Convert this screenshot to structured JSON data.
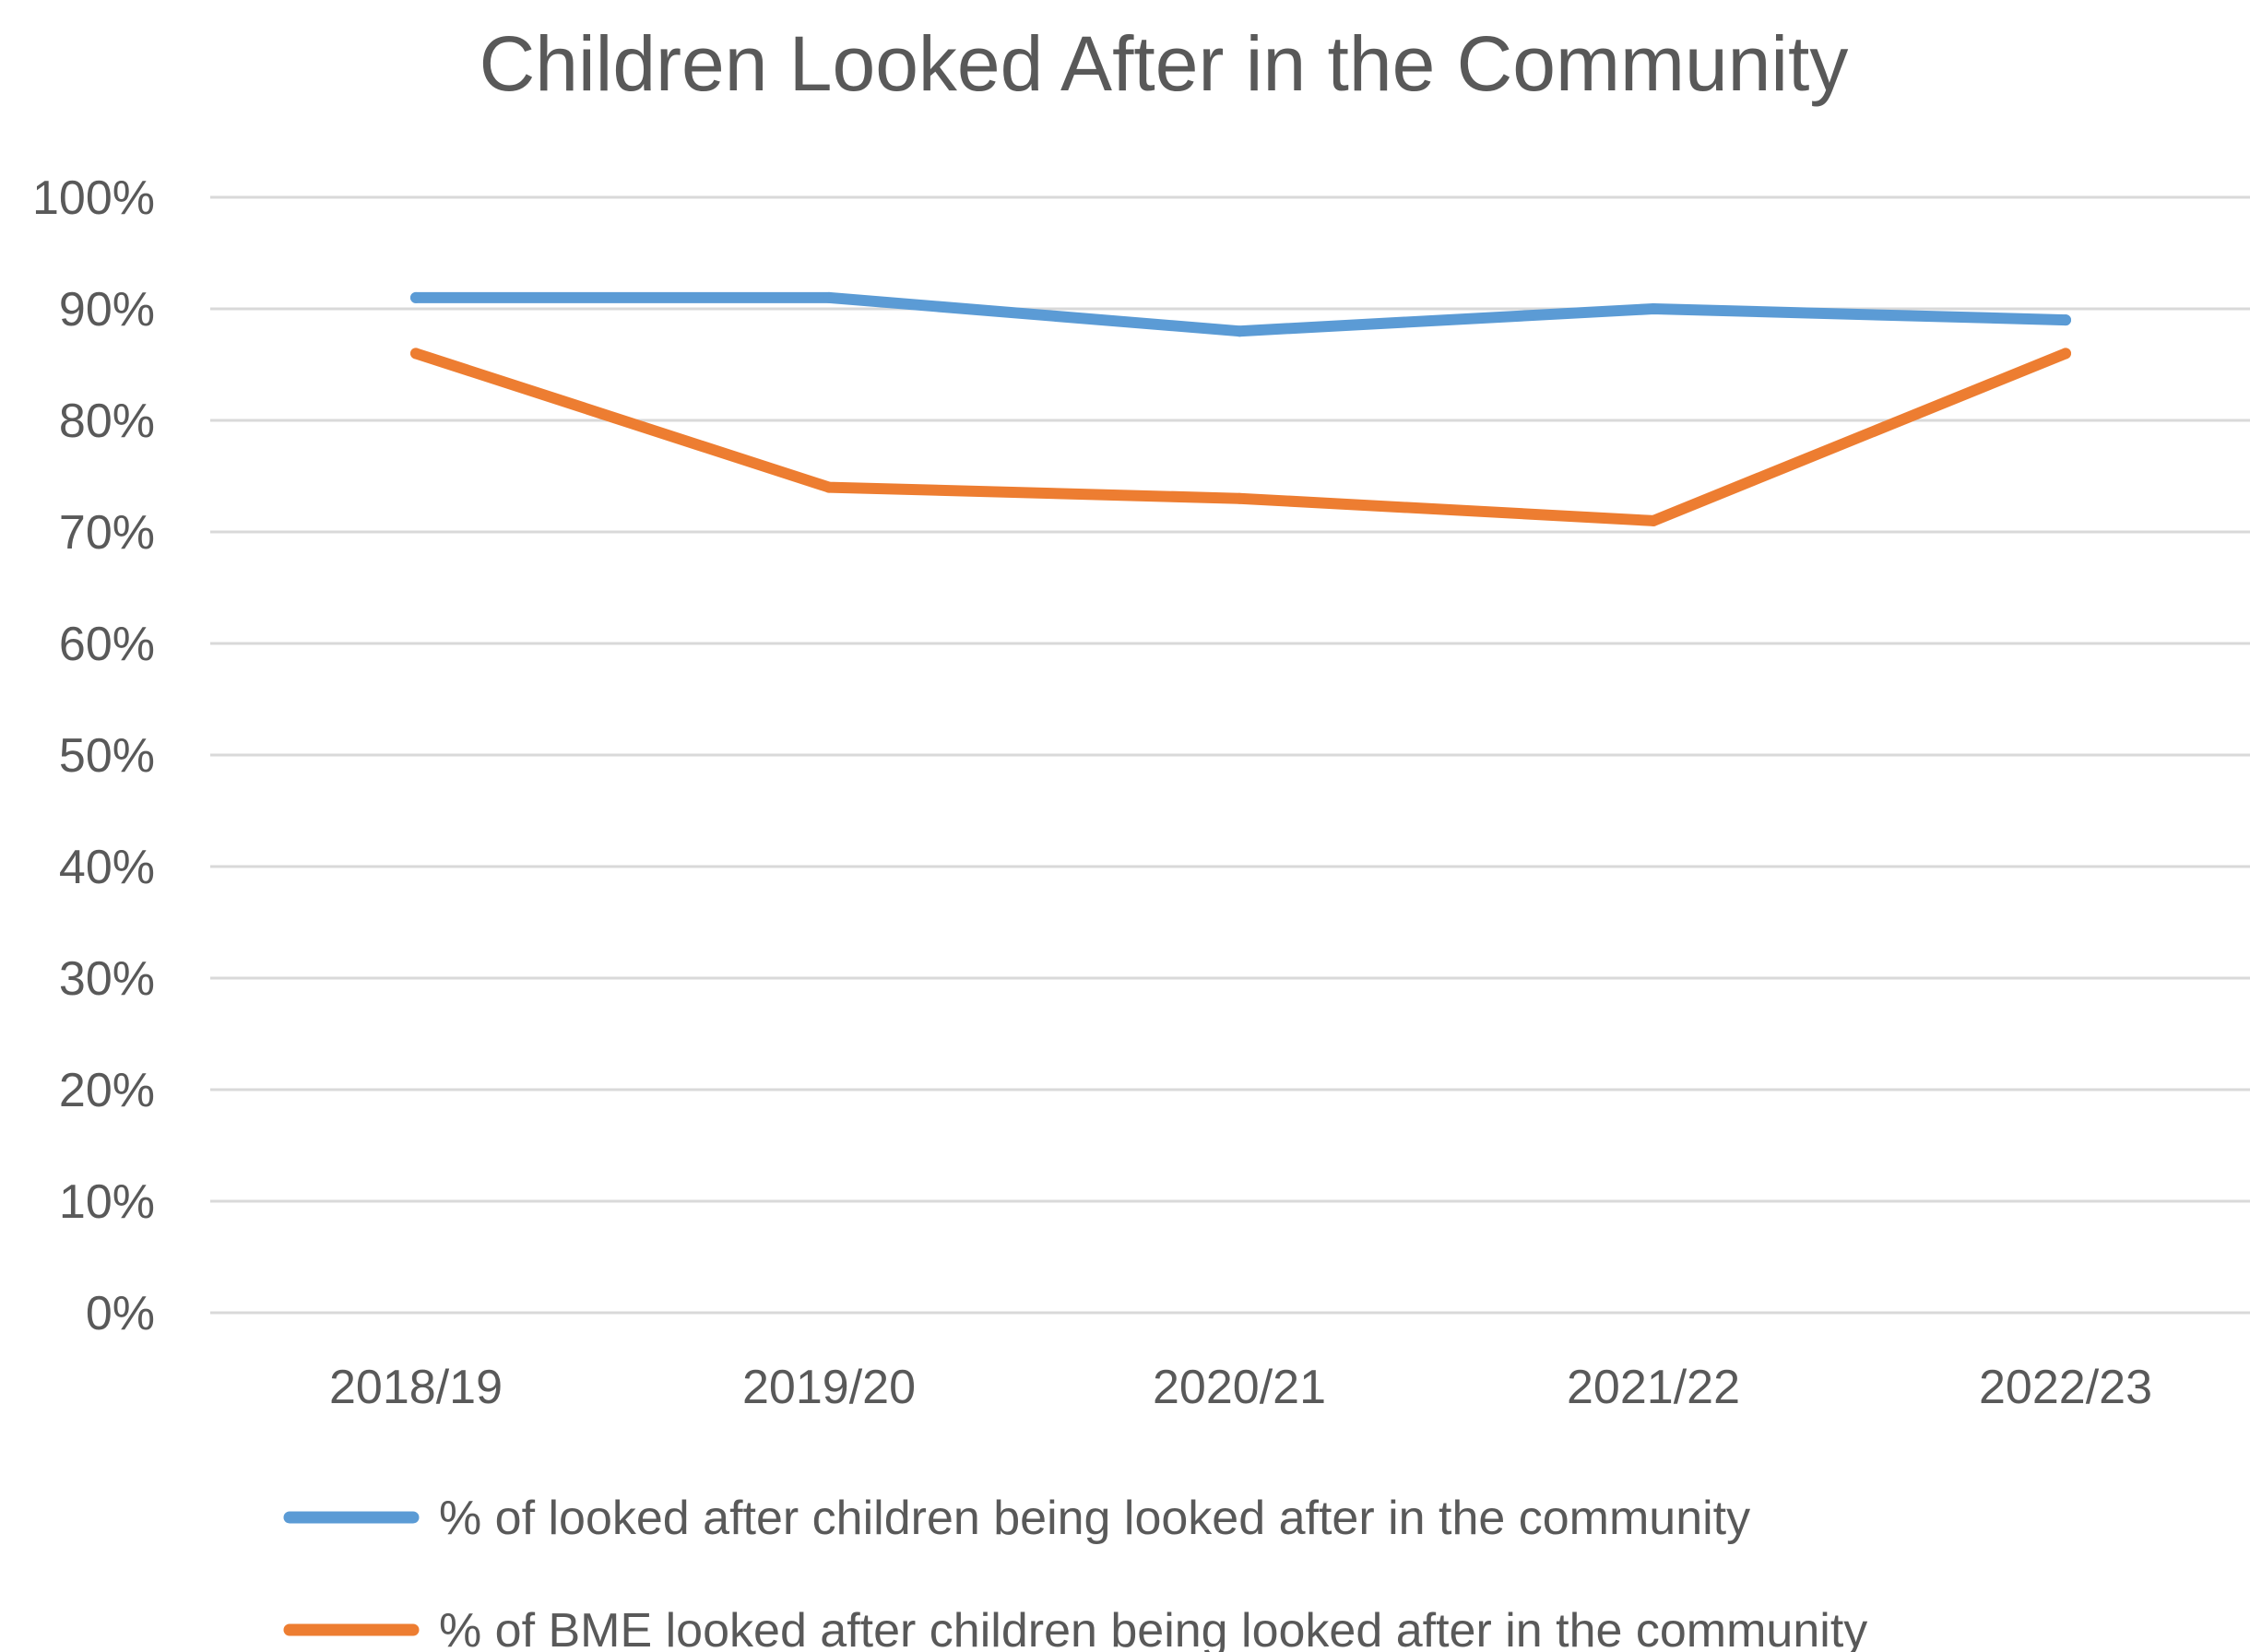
{
  "chart_data": {
    "type": "line",
    "title": "Children Looked After in the Community",
    "xlabel": "",
    "ylabel": "",
    "categories": [
      "2018/19",
      "2019/20",
      "2020/21",
      "2021/22",
      "2022/23"
    ],
    "y_ticks": [
      "0%",
      "10%",
      "20%",
      "30%",
      "40%",
      "50%",
      "60%",
      "70%",
      "80%",
      "90%",
      "100%"
    ],
    "ylim": [
      0,
      100
    ],
    "grid": true,
    "legend_position": "bottom",
    "series": [
      {
        "name": "% of looked after children being looked after in the community",
        "color": "#5b9bd5",
        "values": [
          91,
          91,
          88,
          90,
          89
        ]
      },
      {
        "name": "% of BME looked after children being looked after in the community",
        "color": "#ed7d31",
        "values": [
          86,
          74,
          73,
          71,
          86
        ]
      }
    ]
  }
}
